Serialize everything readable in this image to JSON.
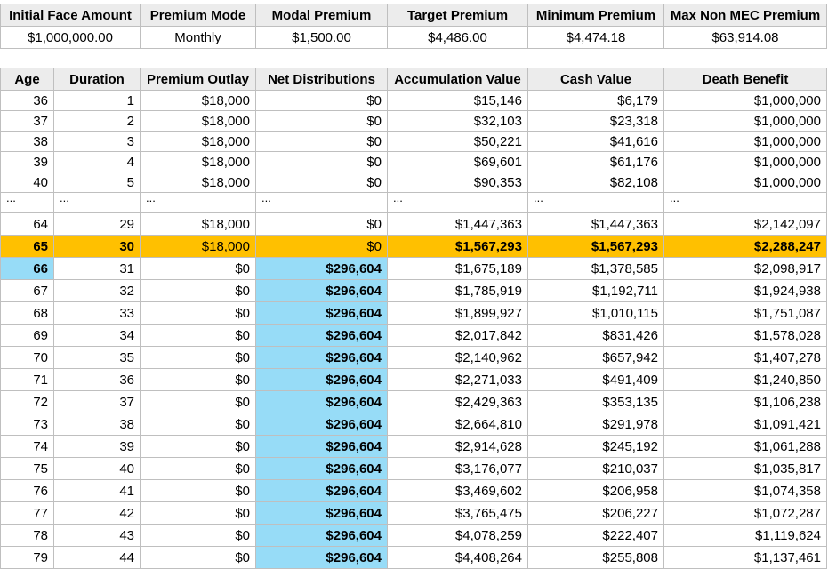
{
  "summary": {
    "headers": [
      "Initial Face Amount",
      "Premium Mode",
      "Modal Premium",
      "Target Premium",
      "Minimum Premium",
      "Max Non MEC Premium"
    ],
    "values": [
      "$1,000,000.00",
      "Monthly",
      "$1,500.00",
      "$4,486.00",
      "$4,474.18",
      "$63,914.08"
    ]
  },
  "table": {
    "headers": [
      "Age",
      "Duration",
      "Premium Outlay",
      "Net Distributions",
      "Accumulation Value",
      "Cash Value",
      "Death Benefit"
    ],
    "rows_top": [
      [
        "36",
        "1",
        "$18,000",
        "$0",
        "$15,146",
        "$6,179",
        "$1,000,000"
      ],
      [
        "37",
        "2",
        "$18,000",
        "$0",
        "$32,103",
        "$23,318",
        "$1,000,000"
      ],
      [
        "38",
        "3",
        "$18,000",
        "$0",
        "$50,221",
        "$41,616",
        "$1,000,000"
      ],
      [
        "39",
        "4",
        "$18,000",
        "$0",
        "$69,601",
        "$61,176",
        "$1,000,000"
      ],
      [
        "40",
        "5",
        "$18,000",
        "$0",
        "$90,353",
        "$82,108",
        "$1,000,000"
      ]
    ],
    "ellipsis": [
      "...",
      "...",
      "...",
      "...",
      "...",
      "...",
      "..."
    ],
    "row_64": [
      "64",
      "29",
      "$18,000",
      "$0",
      "$1,447,363",
      "$1,447,363",
      "$2,142,097"
    ],
    "row_65": [
      "65",
      "30",
      "$18,000",
      "$0",
      "$1,567,293",
      "$1,567,293",
      "$2,288,247"
    ],
    "rows_bottom": [
      [
        "66",
        "31",
        "$0",
        "$296,604",
        "$1,675,189",
        "$1,378,585",
        "$2,098,917"
      ],
      [
        "67",
        "32",
        "$0",
        "$296,604",
        "$1,785,919",
        "$1,192,711",
        "$1,924,938"
      ],
      [
        "68",
        "33",
        "$0",
        "$296,604",
        "$1,899,927",
        "$1,010,115",
        "$1,751,087"
      ],
      [
        "69",
        "34",
        "$0",
        "$296,604",
        "$2,017,842",
        "$831,426",
        "$1,578,028"
      ],
      [
        "70",
        "35",
        "$0",
        "$296,604",
        "$2,140,962",
        "$657,942",
        "$1,407,278"
      ],
      [
        "71",
        "36",
        "$0",
        "$296,604",
        "$2,271,033",
        "$491,409",
        "$1,240,850"
      ],
      [
        "72",
        "37",
        "$0",
        "$296,604",
        "$2,429,363",
        "$353,135",
        "$1,106,238"
      ],
      [
        "73",
        "38",
        "$0",
        "$296,604",
        "$2,664,810",
        "$291,978",
        "$1,091,421"
      ],
      [
        "74",
        "39",
        "$0",
        "$296,604",
        "$2,914,628",
        "$245,192",
        "$1,061,288"
      ],
      [
        "75",
        "40",
        "$0",
        "$296,604",
        "$3,176,077",
        "$210,037",
        "$1,035,817"
      ],
      [
        "76",
        "41",
        "$0",
        "$296,604",
        "$3,469,602",
        "$206,958",
        "$1,074,358"
      ],
      [
        "77",
        "42",
        "$0",
        "$296,604",
        "$3,765,475",
        "$206,227",
        "$1,072,287"
      ],
      [
        "78",
        "43",
        "$0",
        "$296,604",
        "$4,078,259",
        "$222,407",
        "$1,119,624"
      ],
      [
        "79",
        "44",
        "$0",
        "$296,604",
        "$4,408,264",
        "$255,808",
        "$1,137,461"
      ]
    ]
  },
  "colors": {
    "highlight_row": "#ffc000",
    "highlight_cell": "#97dcf7",
    "header_bg": "#ececec",
    "grid": "#bfbfbf"
  }
}
